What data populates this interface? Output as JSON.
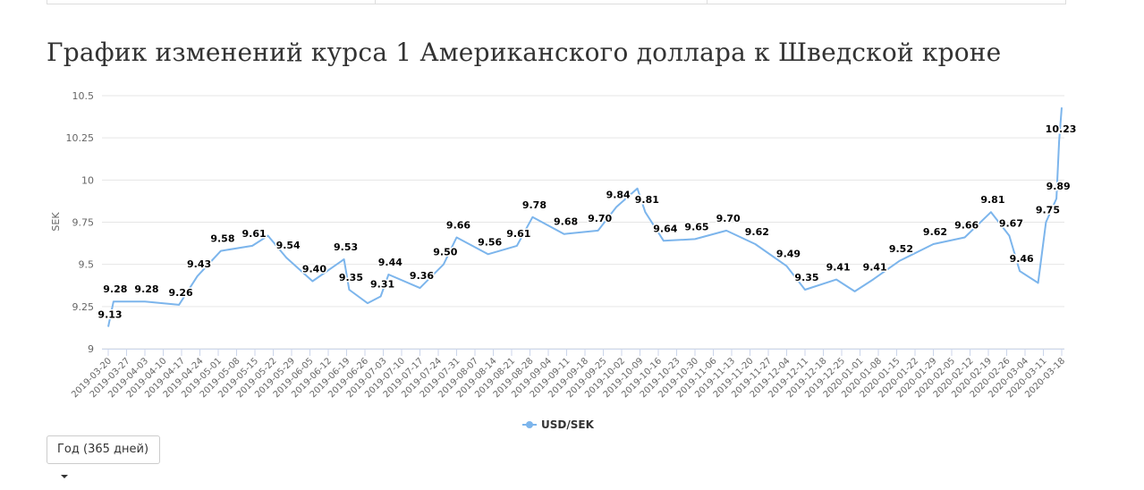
{
  "chart_data": {
    "type": "line",
    "title": "График изменений курса 1 Американского доллара к Шведской кроне",
    "y_label": "SEK",
    "x": [
      "2019-03-20",
      "2019-03-22",
      "2019-04-03",
      "2019-04-16",
      "2019-04-23",
      "2019-05-02",
      "2019-05-14",
      "2019-05-20",
      "2019-05-27",
      "2019-06-06",
      "2019-06-18",
      "2019-06-20",
      "2019-06-27",
      "2019-07-02",
      "2019-07-05",
      "2019-07-17",
      "2019-07-26",
      "2019-07-31",
      "2019-08-12",
      "2019-08-23",
      "2019-08-29",
      "2019-09-10",
      "2019-09-23",
      "2019-09-30",
      "2019-10-08",
      "2019-10-11",
      "2019-10-18",
      "2019-10-30",
      "2019-11-11",
      "2019-11-22",
      "2019-12-04",
      "2019-12-11",
      "2019-12-23",
      "2019-12-30",
      "2020-01-06",
      "2020-01-16",
      "2020-01-29",
      "2020-02-10",
      "2020-02-20",
      "2020-02-27",
      "2020-03-02",
      "2020-03-09",
      "2020-03-12",
      "2020-03-16",
      "2020-03-17",
      "2020-03-18"
    ],
    "series": [
      {
        "name": "USD/SEK",
        "color": "#7cb5ec",
        "values": [
          9.13,
          9.28,
          9.28,
          9.26,
          9.43,
          9.58,
          9.61,
          9.67,
          9.54,
          9.4,
          9.53,
          9.35,
          9.27,
          9.31,
          9.44,
          9.36,
          9.5,
          9.66,
          9.56,
          9.61,
          9.78,
          9.68,
          9.7,
          9.84,
          9.95,
          9.81,
          9.64,
          9.65,
          9.7,
          9.62,
          9.49,
          9.35,
          9.41,
          9.34,
          9.41,
          9.52,
          9.62,
          9.66,
          9.81,
          9.67,
          9.46,
          9.39,
          9.75,
          9.89,
          10.23,
          10.43
        ],
        "value_labels": [
          "9.13",
          "9.28",
          "9.28",
          "9.26",
          "9.43",
          "9.58",
          "9.61",
          null,
          "9.54",
          "9.40",
          "9.53",
          "9.35",
          null,
          "9.31",
          "9.44",
          "9.36",
          "9.50",
          "9.66",
          "9.56",
          "9.61",
          "9.78",
          "9.68",
          "9.70",
          "9.84",
          null,
          "9.81",
          "9.64",
          "9.65",
          "9.70",
          "9.62",
          "9.49",
          "9.35",
          "9.41",
          null,
          "9.41",
          "9.52",
          "9.62",
          "9.66",
          "9.81",
          "9.67",
          "9.46",
          null,
          "9.75",
          "9.89",
          "10.23",
          null
        ]
      }
    ],
    "xlim": [
      "2019-03-20",
      "2020-03-18"
    ],
    "xticks": [
      "2019-03-20",
      "2019-03-27",
      "2019-04-03",
      "2019-04-10",
      "2019-04-17",
      "2019-04-24",
      "2019-05-01",
      "2019-05-08",
      "2019-05-15",
      "2019-05-22",
      "2019-05-29",
      "2019-06-05",
      "2019-06-12",
      "2019-06-19",
      "2019-06-26",
      "2019-07-03",
      "2019-07-10",
      "2019-07-17",
      "2019-07-24",
      "2019-07-31",
      "2019-08-07",
      "2019-08-14",
      "2019-08-21",
      "2019-08-28",
      "2019-09-04",
      "2019-09-11",
      "2019-09-18",
      "2019-09-25",
      "2019-10-02",
      "2019-10-09",
      "2019-10-16",
      "2019-10-23",
      "2019-10-30",
      "2019-11-06",
      "2019-11-13",
      "2019-11-20",
      "2019-11-27",
      "2019-12-04",
      "2019-12-11",
      "2019-12-18",
      "2019-12-25",
      "2020-01-01",
      "2020-01-08",
      "2020-01-15",
      "2020-01-22",
      "2020-01-29",
      "2020-02-05",
      "2020-02-12",
      "2020-02-19",
      "2020-02-26",
      "2020-03-04",
      "2020-03-11",
      "2020-03-18"
    ],
    "ylim": [
      9,
      10.5
    ],
    "yticks": [
      9,
      9.25,
      9.5,
      9.75,
      10,
      10.25,
      10.5
    ],
    "grid": true,
    "legend": "bottom",
    "button": "Год (365 дней)"
  }
}
